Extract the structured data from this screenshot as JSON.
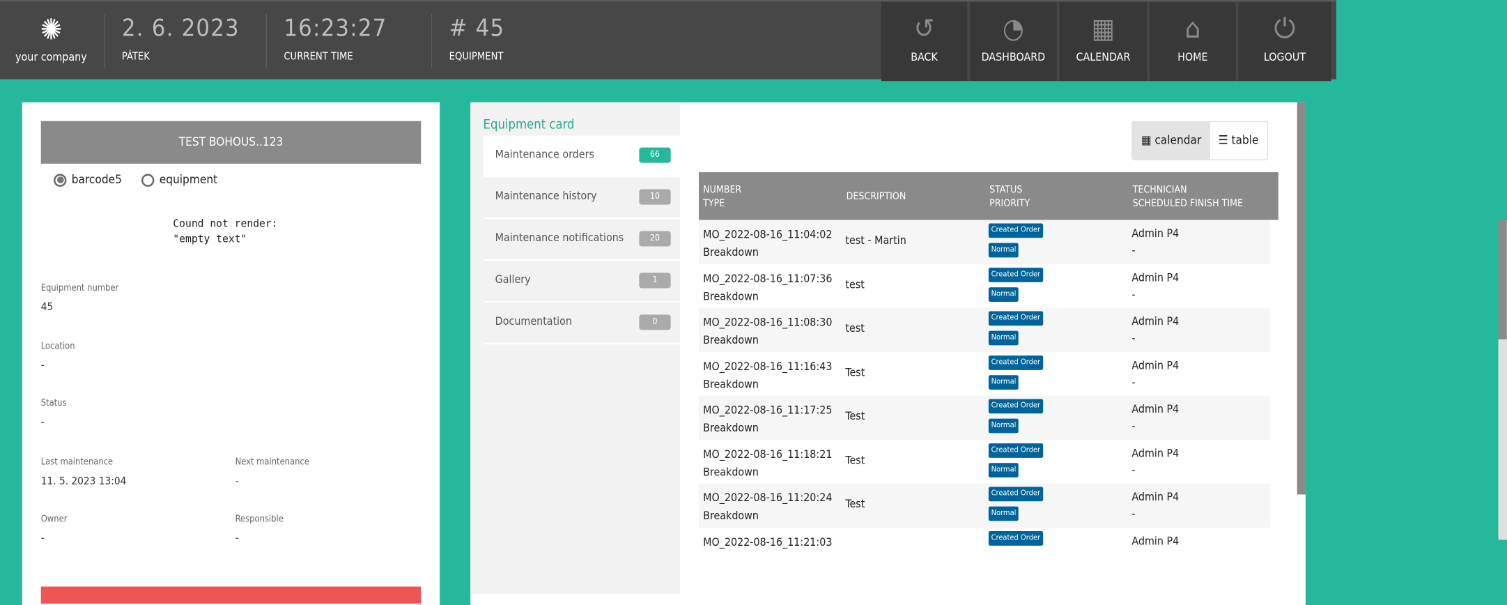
{
  "header": {
    "company": "your company",
    "date": "2. 6. 2023",
    "day": "PÁTEK",
    "time": "16:23:27",
    "time_label": "CURRENT TIME",
    "equipment": "# 45",
    "equipment_label": "EQUIPMENT",
    "nav": [
      {
        "label": "BACK",
        "icon": "undo-icon"
      },
      {
        "label": "DASHBOARD",
        "icon": "gauge-icon"
      },
      {
        "label": "CALENDAR",
        "icon": "calendar-icon"
      },
      {
        "label": "HOME",
        "icon": "home-icon"
      },
      {
        "label": "LOGOUT",
        "icon": "power-icon"
      }
    ]
  },
  "left": {
    "title": "TEST BOHOUS..123",
    "radios": [
      {
        "label": "barcode5",
        "checked": true
      },
      {
        "label": "equipment",
        "checked": false
      }
    ],
    "error": "Cound not render:\n\"empty text\"",
    "fields": {
      "equipment_number": {
        "label": "Equipment number",
        "value": "45"
      },
      "location": {
        "label": "Location",
        "value": "-"
      },
      "status": {
        "label": "Status",
        "value": "-"
      },
      "last_maintenance": {
        "label": "Last maintenance",
        "value": "11. 5. 2023 13:04"
      },
      "next_maintenance": {
        "label": "Next maintenance",
        "value": "-"
      },
      "owner": {
        "label": "Owner",
        "value": "-"
      },
      "responsible": {
        "label": "Responsible",
        "value": "-"
      }
    }
  },
  "card": {
    "title": "Equipment card",
    "items": [
      {
        "label": "Maintenance orders",
        "count": "66"
      },
      {
        "label": "Maintenance history",
        "count": "10"
      },
      {
        "label": "Maintenance notifications",
        "count": "20"
      },
      {
        "label": "Gallery",
        "count": "1"
      },
      {
        "label": "Documentation",
        "count": "0"
      }
    ]
  },
  "view": {
    "calendar": "calendar",
    "table": "table"
  },
  "table": {
    "headers": {
      "number": "NUMBER",
      "type": "TYPE",
      "description": "DESCRIPTION",
      "status": "STATUS",
      "priority": "PRIORITY",
      "technician": "TECHNICIAN",
      "finish": "SCHEDULED FINISH TIME"
    },
    "rows": [
      {
        "number": "MO_2022-08-16_11:04:02",
        "type": "Breakdown",
        "description": "test - Martin",
        "status": "Created Order",
        "priority": "Normal",
        "technician": "Admin P4",
        "finish": "-"
      },
      {
        "number": "MO_2022-08-16_11:07:36",
        "type": "Breakdown",
        "description": "test",
        "status": "Created Order",
        "priority": "Normal",
        "technician": "Admin P4",
        "finish": "-"
      },
      {
        "number": "MO_2022-08-16_11:08:30",
        "type": "Breakdown",
        "description": "test",
        "status": "Created Order",
        "priority": "Normal",
        "technician": "Admin P4",
        "finish": "-"
      },
      {
        "number": "MO_2022-08-16_11:16:43",
        "type": "Breakdown",
        "description": "Test",
        "status": "Created Order",
        "priority": "Normal",
        "technician": "Admin P4",
        "finish": "-"
      },
      {
        "number": "MO_2022-08-16_11:17:25",
        "type": "Breakdown",
        "description": "Test",
        "status": "Created Order",
        "priority": "Normal",
        "technician": "Admin P4",
        "finish": "-"
      },
      {
        "number": "MO_2022-08-16_11:18:21",
        "type": "Breakdown",
        "description": "Test",
        "status": "Created Order",
        "priority": "Normal",
        "technician": "Admin P4",
        "finish": "-"
      },
      {
        "number": "MO_2022-08-16_11:20:24",
        "type": "Breakdown",
        "description": "Test",
        "status": "Created Order",
        "priority": "Normal",
        "technician": "Admin P4",
        "finish": "-"
      },
      {
        "number": "MO_2022-08-16_11:21:03",
        "type": "",
        "description": "",
        "status": "Created Order",
        "priority": "",
        "technician": "Admin P4",
        "finish": ""
      }
    ]
  }
}
